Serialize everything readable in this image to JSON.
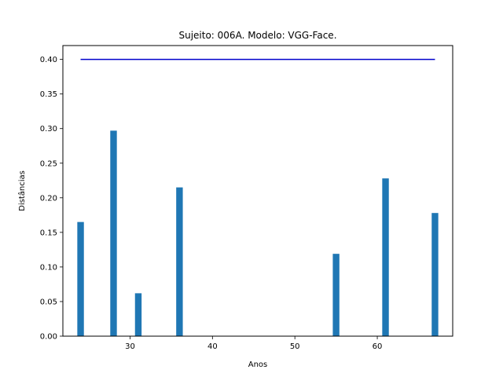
{
  "chart_data": {
    "type": "bar",
    "title": "Sujeito: 006A. Modelo: VGG-Face.",
    "xlabel": "Anos",
    "ylabel": "Distâncias",
    "xlim": [
      21.85,
      69.15
    ],
    "ylim": [
      0,
      0.42
    ],
    "xticks": [
      30,
      40,
      50,
      60
    ],
    "xtick_labels": [
      "30",
      "40",
      "50",
      "60"
    ],
    "yticks": [
      0,
      0.05,
      0.1,
      0.15,
      0.2,
      0.25,
      0.3,
      0.35,
      0.4
    ],
    "ytick_labels": [
      "0.00",
      "0.05",
      "0.10",
      "0.15",
      "0.20",
      "0.25",
      "0.30",
      "0.35",
      "0.40"
    ],
    "bar_width": 0.8,
    "bar_color": "#1f77b4",
    "bars": [
      {
        "x": 24,
        "value": 0.165
      },
      {
        "x": 28,
        "value": 0.297
      },
      {
        "x": 31,
        "value": 0.062
      },
      {
        "x": 36,
        "value": 0.215
      },
      {
        "x": 55,
        "value": 0.119
      },
      {
        "x": 61,
        "value": 0.228
      },
      {
        "x": 67,
        "value": 0.178
      }
    ],
    "threshold_line": {
      "x": [
        24,
        67
      ],
      "y": 0.4,
      "color": "#0000cc"
    },
    "grid": false,
    "legend": "none"
  }
}
